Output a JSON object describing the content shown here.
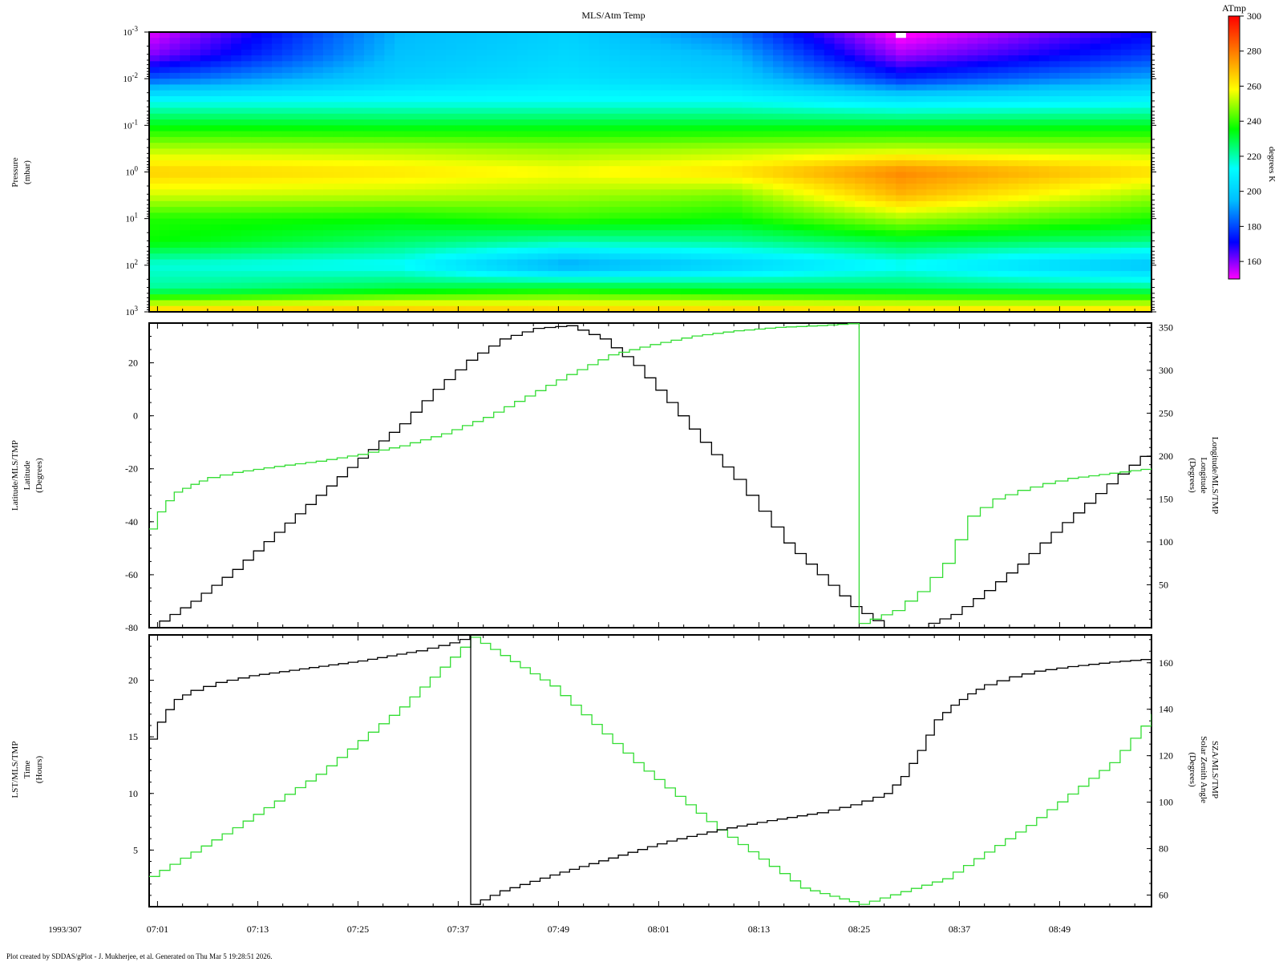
{
  "title": "MLS/Atm Temp",
  "footer": "Plot created by SDDAS/gPlot - J. Mukherjee, et al.  Generated on Thu Mar 5 19:28:51 2026.",
  "date_label": "1993/307",
  "time_ticks": [
    "07:01",
    "07:13",
    "07:25",
    "07:37",
    "07:49",
    "08:01",
    "08:13",
    "08:25",
    "08:37",
    "08:49"
  ],
  "colors": {
    "black_series": "#000000",
    "green_series": "#33dd33",
    "missing_data": "#ffffff"
  },
  "chart_data": [
    {
      "type": "heatmap",
      "title": "MLS/Atm Temp",
      "ylabel": [
        "Pressure",
        "(mbar)"
      ],
      "y_scale": "log",
      "y_range_mbar": [
        0.001,
        1000
      ],
      "y_reversed": true,
      "y_tick_labels": [
        {
          "base": "10",
          "exp": "-3"
        },
        {
          "base": "10",
          "exp": "-2"
        },
        {
          "base": "10",
          "exp": "-1"
        },
        {
          "base": "10",
          "exp": "0"
        },
        {
          "base": "10",
          "exp": "1"
        },
        {
          "base": "10",
          "exp": "2"
        },
        {
          "base": "10",
          "exp": "3"
        }
      ],
      "x_range": [
        "07:00",
        "08:59"
      ],
      "colorbar": {
        "title": "ATmp",
        "label": "degrees K",
        "range": [
          150,
          300
        ],
        "ticks": [
          "160",
          "180",
          "200",
          "220",
          "240",
          "260",
          "280",
          "300"
        ],
        "colormap": [
          "#ff00ff",
          "#0000ff",
          "#00bfff",
          "#00ffff",
          "#00ff00",
          "#ffff00",
          "#ff8000",
          "#ff0000"
        ]
      },
      "pressure_levels_mbar": [
        1000,
        316,
        100,
        31.6,
        10,
        3.16,
        1,
        0.316,
        0.1,
        0.0316,
        0.01,
        0.00316,
        0.001
      ],
      "temperature_profiles_K": [
        {
          "hour": "07:00",
          "values": [
            268,
            222,
            216,
            236,
            238,
            254,
            266,
            251,
            234,
            214,
            182,
            160,
            152
          ]
        },
        {
          "hour": "07:30",
          "values": [
            270,
            230,
            212,
            226,
            236,
            252,
            262,
            250,
            232,
            214,
            200,
            196,
            194
          ]
        },
        {
          "hour": "07:50",
          "values": [
            268,
            234,
            190,
            220,
            240,
            250,
            258,
            248,
            232,
            214,
            205,
            202,
            200
          ]
        },
        {
          "hour": "08:10",
          "values": [
            268,
            230,
            200,
            222,
            236,
            246,
            263,
            250,
            232,
            214,
            200,
            194,
            186
          ]
        },
        {
          "hour": "08:30",
          "values": [
            266,
            228,
            212,
            230,
            250,
            270,
            278,
            252,
            232,
            208,
            176,
            158,
            148
          ]
        },
        {
          "hour": "08:59",
          "values": [
            266,
            224,
            196,
            224,
            238,
            250,
            264,
            250,
            232,
            212,
            192,
            178,
            170
          ]
        }
      ]
    },
    {
      "type": "line",
      "ylabel_left": [
        "Latitude/MLS/TMP",
        "Latitude",
        "(Degrees)"
      ],
      "ylabel_right": [
        "Longitude/MLS/TMP",
        "Longitude",
        "(Degrees)"
      ],
      "ylim_left": [
        -80,
        35
      ],
      "ylim_right": [
        0,
        355
      ],
      "yticks_left": [
        "20",
        "0",
        "-20",
        "-40",
        "-60",
        "-80"
      ],
      "yticks_right": [
        "350",
        "300",
        "250",
        "200",
        "150",
        "100",
        "50"
      ],
      "series": [
        {
          "name": "Latitude",
          "axis": "left",
          "color": "#000000",
          "step": true,
          "x_minutes": [
            0,
            5,
            10,
            15,
            20,
            25,
            30,
            34,
            38,
            42,
            46,
            50,
            54,
            58,
            62,
            66,
            70,
            73,
            76,
            80,
            84,
            88,
            92,
            96,
            100,
            104,
            108,
            112,
            116,
            120
          ],
          "y": [
            -80,
            -70,
            -58,
            -44,
            -30,
            -16,
            -3,
            10,
            21,
            29,
            33,
            34,
            29,
            19,
            5,
            -10,
            -24,
            -36,
            -48,
            -60,
            -72,
            -80,
            -80,
            -75,
            -66,
            -56,
            -44,
            -33,
            -22,
            -12
          ]
        },
        {
          "name": "Longitude",
          "axis": "right",
          "color": "#33dd33",
          "step": true,
          "x_minutes": [
            0,
            1,
            2,
            3,
            5,
            7,
            10,
            15,
            20,
            25,
            30,
            35,
            40,
            45,
            50,
            55,
            60,
            65,
            70,
            75,
            80,
            84.9,
            85,
            89,
            92,
            95,
            98,
            101,
            104,
            107,
            110,
            115,
            120
          ],
          "y": [
            115,
            135,
            148,
            158,
            167,
            175,
            181,
            188,
            194,
            202,
            212,
            226,
            245,
            270,
            295,
            318,
            330,
            340,
            346,
            350,
            352,
            355,
            5,
            20,
            42,
            75,
            130,
            150,
            160,
            168,
            174,
            180,
            186
          ]
        }
      ]
    },
    {
      "type": "line",
      "ylabel_left": [
        "LST/MLS/TMP",
        "Time",
        "(Hours)"
      ],
      "ylabel_right": [
        "SZA/MLS/TMP",
        "Solar Zenith Angle",
        "(Degrees)"
      ],
      "ylim_left": [
        0,
        24
      ],
      "ylim_right": [
        55,
        172
      ],
      "yticks_left": [
        "20",
        "15",
        "10",
        "5"
      ],
      "yticks_right": [
        "160",
        "140",
        "120",
        "100",
        "80",
        "60"
      ],
      "series": [
        {
          "name": "LST",
          "axis": "left",
          "color": "#000000",
          "step": true,
          "x_minutes": [
            0,
            1,
            2,
            3,
            5,
            8,
            12,
            18,
            25,
            32,
            36,
            38.4,
            38.5,
            42,
            48,
            55,
            62,
            68,
            74,
            80,
            84,
            88,
            90,
            92,
            94,
            96,
            98,
            100,
            103,
            106,
            110,
            115,
            120
          ],
          "y": [
            14.8,
            16.3,
            17.4,
            18.3,
            19.1,
            19.8,
            20.4,
            21.0,
            21.7,
            22.6,
            23.3,
            23.9,
            0.2,
            1.4,
            2.8,
            4.3,
            5.8,
            6.8,
            7.6,
            8.3,
            9.0,
            10.0,
            11.5,
            13.8,
            16.5,
            17.8,
            18.8,
            19.6,
            20.3,
            20.8,
            21.2,
            21.6,
            21.9
          ]
        },
        {
          "name": "SZA",
          "axis": "right",
          "color": "#33dd33",
          "step": true,
          "x_minutes": [
            0,
            10,
            20,
            30,
            38.5,
            48,
            58,
            68,
            78,
            85,
            95,
            105,
            115,
            120
          ],
          "y": [
            68,
            89,
            112,
            141,
            171,
            150,
            117,
            88,
            63,
            56,
            67,
            90,
            117,
            138
          ]
        }
      ]
    }
  ]
}
